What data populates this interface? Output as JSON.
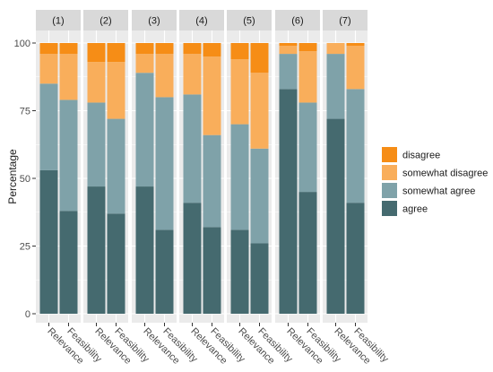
{
  "chart_data": {
    "type": "bar",
    "stacked": true,
    "faceted": true,
    "ylabel": "Percentage",
    "ylim": [
      0,
      100
    ],
    "yticks": [
      0,
      25,
      50,
      75,
      100
    ],
    "grid": true,
    "legend_position": "right",
    "panels": [
      "(1)",
      "(2)",
      "(3)",
      "(4)",
      "(5)",
      "(6)",
      "(7)"
    ],
    "categories": [
      "Relevance",
      "Feasibility"
    ],
    "series": [
      {
        "name": "agree",
        "color": "#456a6f",
        "values": [
          [
            53,
            38
          ],
          [
            47,
            37
          ],
          [
            47,
            31
          ],
          [
            41,
            32
          ],
          [
            31,
            26
          ],
          [
            83,
            45
          ],
          [
            72,
            41
          ]
        ]
      },
      {
        "name": "somewhat agree",
        "color": "#7fa2a9",
        "values": [
          [
            32,
            41
          ],
          [
            31,
            35
          ],
          [
            42,
            49
          ],
          [
            40,
            34
          ],
          [
            39,
            35
          ],
          [
            13,
            33
          ],
          [
            24,
            42
          ]
        ]
      },
      {
        "name": "somewhat disagree",
        "color": "#f9ae5b",
        "values": [
          [
            11,
            17
          ],
          [
            15,
            21
          ],
          [
            7,
            16
          ],
          [
            15,
            29
          ],
          [
            24,
            28
          ],
          [
            3,
            19
          ],
          [
            4,
            16
          ]
        ]
      },
      {
        "name": "disagree",
        "color": "#f68d16",
        "values": [
          [
            4,
            4
          ],
          [
            7,
            7
          ],
          [
            4,
            4
          ],
          [
            4,
            5
          ],
          [
            6,
            11
          ],
          [
            1,
            3
          ],
          [
            0,
            1
          ]
        ]
      }
    ],
    "legend_order": [
      "disagree",
      "somewhat disagree",
      "somewhat agree",
      "agree"
    ]
  },
  "colors": {
    "panel_background": "#ebebeb",
    "strip_background": "#d9d9d9",
    "gridline": "#ffffff"
  }
}
